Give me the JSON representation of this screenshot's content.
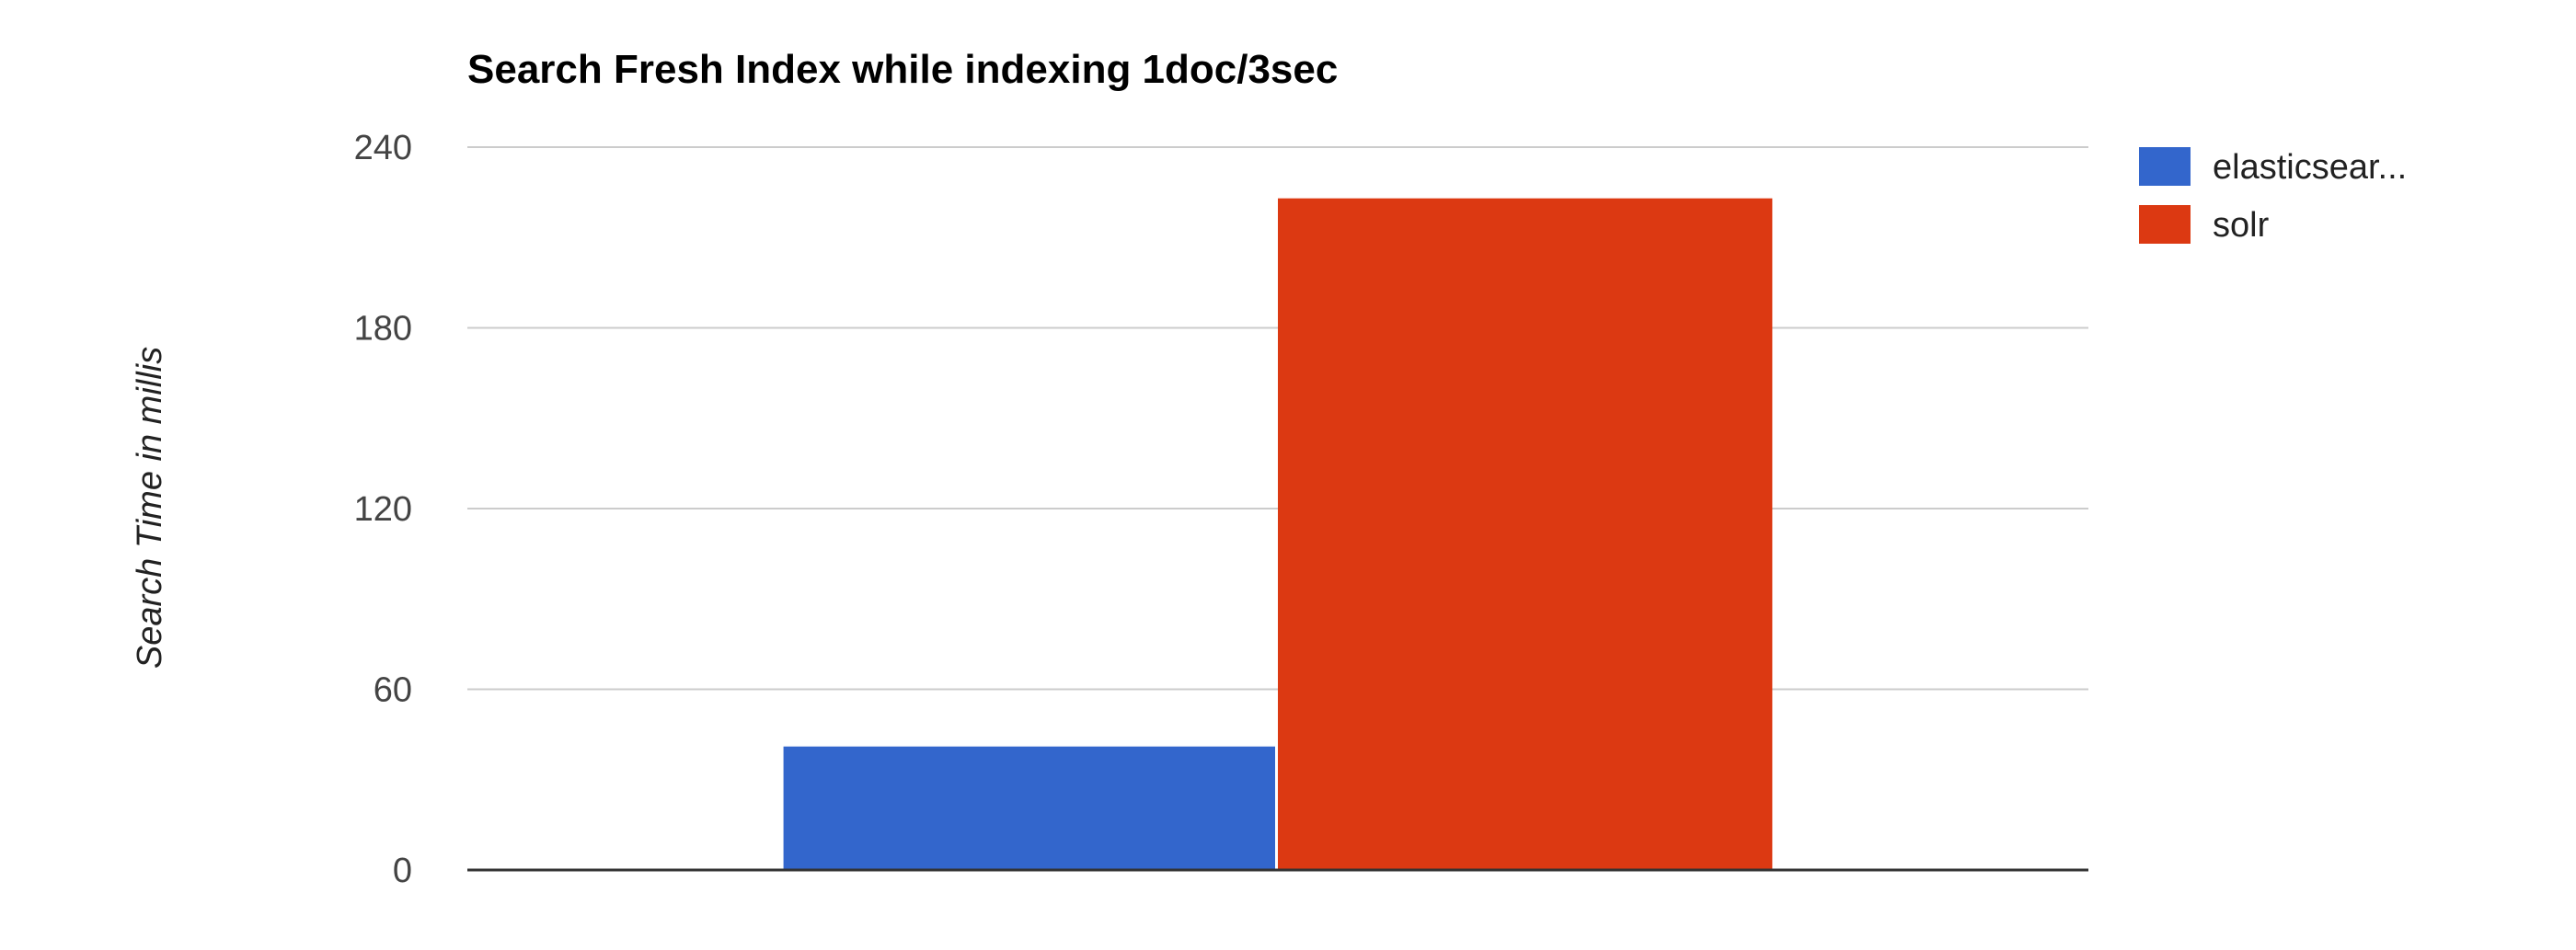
{
  "chart_data": {
    "type": "bar",
    "title": "Search Fresh Index while indexing 1doc/3sec",
    "xlabel": "",
    "ylabel": "Search Time in millis",
    "categories": [
      ""
    ],
    "series": [
      {
        "name": "elasticsear...",
        "color": "#3366cc",
        "values": [
          41
        ]
      },
      {
        "name": "solr",
        "color": "#dc3912",
        "values": [
          223
        ]
      }
    ],
    "ylim": [
      0,
      240
    ],
    "yticks": [
      "0",
      "60",
      "120",
      "180",
      "240"
    ],
    "grid": true,
    "legend": "top-right"
  }
}
